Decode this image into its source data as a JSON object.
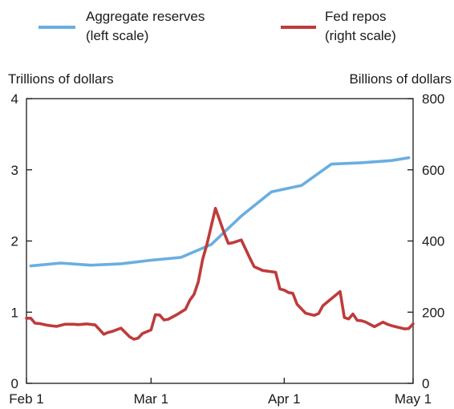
{
  "chart_data": {
    "type": "line",
    "title": "",
    "legend": {
      "placement": "top",
      "entries": [
        {
          "line1": "Aggregate reserves",
          "line2": "(left scale)",
          "color": "#6aaee0"
        },
        {
          "line1": "Fed repos",
          "line2": "(right scale)",
          "color": "#bf3b3b"
        }
      ]
    },
    "left_axis": {
      "label": "Trillions of dollars",
      "range": [
        0,
        4
      ],
      "ticks": [
        0,
        1,
        2,
        3,
        4
      ],
      "tick_labels": [
        "0",
        "1",
        "2",
        "3",
        "4"
      ]
    },
    "right_axis": {
      "label": "Billions of dollars",
      "range": [
        0,
        800
      ],
      "ticks": [
        0,
        200,
        400,
        600,
        800
      ],
      "tick_labels": [
        "0",
        "200",
        "400",
        "600",
        "800"
      ]
    },
    "x_axis": {
      "label": "",
      "range": [
        "2008-02-01",
        "2008-05-01"
      ],
      "ticks": [
        "2008-02-01",
        "2008-03-01",
        "2008-04-01",
        "2008-05-01"
      ],
      "tick_labels": [
        "Feb 1",
        "Mar 1",
        "Apr 1",
        "May 1"
      ]
    },
    "grid": false,
    "series": [
      {
        "name": "Aggregate reserves",
        "axis": "left",
        "color": "#6aaee0",
        "x": [
          "2008-02-02",
          "2008-02-09",
          "2008-02-16",
          "2008-02-23",
          "2008-03-01",
          "2008-03-08",
          "2008-03-15",
          "2008-03-22",
          "2008-03-29",
          "2008-04-05",
          "2008-04-12",
          "2008-04-19",
          "2008-04-26",
          "2008-04-30"
        ],
        "values": [
          1.65,
          1.69,
          1.66,
          1.68,
          1.73,
          1.77,
          1.95,
          2.35,
          2.69,
          2.78,
          3.08,
          3.1,
          3.13,
          3.17
        ]
      },
      {
        "name": "Fed repos",
        "axis": "right",
        "color": "#bf3b3b",
        "x": [
          "2008-02-01",
          "2008-02-02",
          "2008-02-03",
          "2008-02-04",
          "2008-02-06",
          "2008-02-08",
          "2008-02-10",
          "2008-02-12",
          "2008-02-13",
          "2008-02-15",
          "2008-02-17",
          "2008-02-19",
          "2008-02-20",
          "2008-02-21",
          "2008-02-23",
          "2008-02-25",
          "2008-02-26",
          "2008-02-27",
          "2008-02-28",
          "2008-03-01",
          "2008-03-02",
          "2008-03-03",
          "2008-03-04",
          "2008-03-05",
          "2008-03-07",
          "2008-03-09",
          "2008-03-10",
          "2008-03-11",
          "2008-03-12",
          "2008-03-13",
          "2008-03-14",
          "2008-03-16",
          "2008-03-18",
          "2008-03-19",
          "2008-03-20",
          "2008-03-22",
          "2008-03-24",
          "2008-03-25",
          "2008-03-27",
          "2008-03-30",
          "2008-03-31",
          "2008-04-01",
          "2008-04-02",
          "2008-04-03",
          "2008-04-04",
          "2008-04-06",
          "2008-04-08",
          "2008-04-09",
          "2008-04-10",
          "2008-04-11",
          "2008-04-14",
          "2008-04-15",
          "2008-04-16",
          "2008-04-17",
          "2008-04-18",
          "2008-04-19",
          "2008-04-20",
          "2008-04-22",
          "2008-04-24",
          "2008-04-25",
          "2008-04-26",
          "2008-04-28",
          "2008-04-29",
          "2008-04-30",
          "2008-05-01"
        ],
        "values": [
          183,
          183,
          169,
          168,
          163,
          160,
          166,
          166,
          165,
          167,
          164,
          138,
          143,
          146,
          155,
          131,
          124,
          127,
          140,
          150,
          193,
          192,
          178,
          180,
          193,
          208,
          233,
          250,
          285,
          348,
          390,
          492,
          423,
          393,
          395,
          403,
          352,
          328,
          317,
          312,
          265,
          262,
          255,
          253,
          222,
          197,
          191,
          196,
          218,
          228,
          258,
          185,
          181,
          195,
          177,
          176,
          172,
          159,
          172,
          166,
          162,
          156,
          153,
          154,
          167
        ]
      }
    ]
  }
}
